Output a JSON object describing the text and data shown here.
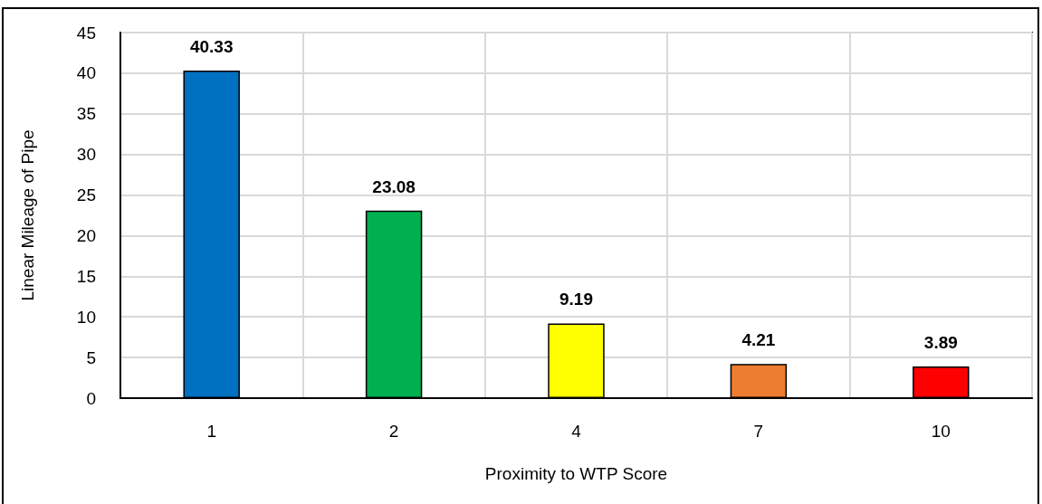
{
  "chart_data": {
    "type": "bar",
    "categories": [
      "1",
      "2",
      "4",
      "7",
      "10"
    ],
    "values": [
      40.33,
      23.08,
      9.19,
      4.21,
      3.89
    ],
    "colors": [
      "#0070c0",
      "#00b050",
      "#ffff00",
      "#ed7d31",
      "#ff0000"
    ],
    "xlabel": "Proximity to WTP Score",
    "ylabel": "Linear Mileage of Pipe",
    "ylim": [
      0,
      45
    ],
    "yticks": [
      0,
      5,
      10,
      15,
      20,
      25,
      30,
      35,
      40,
      45
    ],
    "grid": true,
    "data_labels": true
  }
}
